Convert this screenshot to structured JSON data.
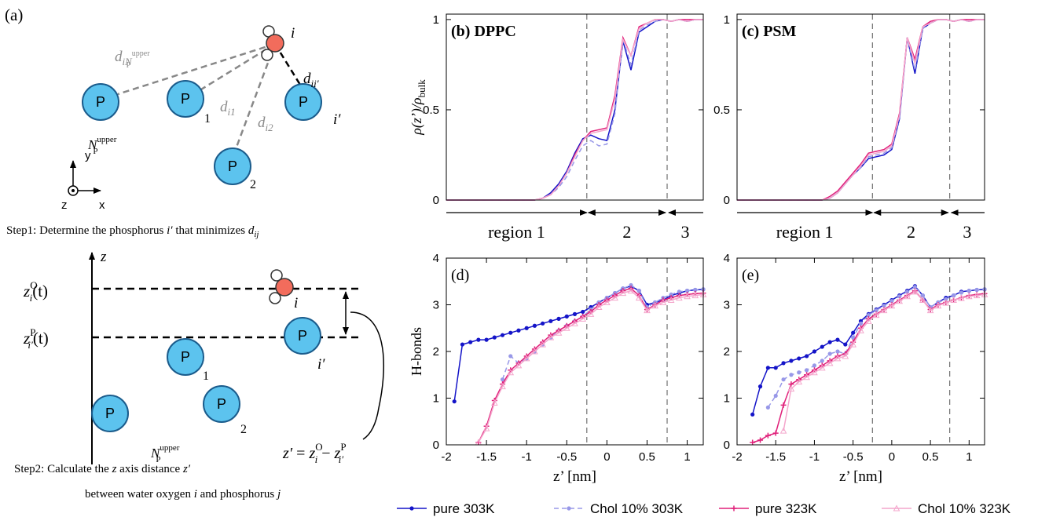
{
  "diagram": {
    "label": "(a)",
    "step1": {
      "nodes": [
        "P",
        "P",
        "P",
        "P"
      ],
      "node_subs": [
        "1",
        "2"
      ],
      "n_upper": [
        "N",
        "upper",
        "P"
      ],
      "water": "i",
      "partner": "i′",
      "d_far": [
        "d",
        "iN",
        "upper",
        "P"
      ],
      "d_1": [
        "d",
        "i1"
      ],
      "d_2": [
        "d",
        "i2"
      ],
      "d_near": [
        "d",
        "ii′"
      ],
      "axes": [
        "y",
        "z",
        "x"
      ],
      "caption": [
        "Step1: Determine the phosphorus ",
        "i′",
        " that minimizes ",
        "d",
        "ij"
      ]
    },
    "step2": {
      "axis": "z",
      "zo": [
        "z",
        "O",
        "i",
        "(t)"
      ],
      "zp": [
        "z",
        "P",
        "i′",
        "(t)"
      ],
      "nodes": [
        "P",
        "P",
        "P",
        "P"
      ],
      "node_subs": [
        "1",
        "2"
      ],
      "partner": "i′",
      "n_upper": [
        "N",
        "upper",
        "P"
      ],
      "water": "i",
      "equation": [
        "z′",
        " = ",
        "z",
        "O",
        "i",
        " − ",
        "z",
        "P",
        "i′"
      ],
      "caption": [
        "Step2: Calculate the ",
        "z",
        " axis distance ",
        "z′"
      ],
      "caption2": [
        "between water oxygen ",
        "i",
        " and phosphorus ",
        "j"
      ]
    }
  },
  "legend": [
    {
      "name": "pure 303K",
      "color": "#1414c8",
      "dash": false,
      "marker": "circle"
    },
    {
      "name": "Chol 10% 303K",
      "color": "#9898e8",
      "dash": true,
      "marker": "circle"
    },
    {
      "name": "pure 323K",
      "color": "#e0207a",
      "dash": false,
      "marker": "plus"
    },
    {
      "name": "Chol 10% 323K",
      "color": "#f4a6cc",
      "dash": false,
      "marker": "triangle"
    }
  ],
  "chart_data": [
    {
      "type": "line",
      "title": "(b) DPPC",
      "ylabel": "ρ(z’)/ρ",
      "ylabel_sub": "bulk",
      "x": [
        -2,
        -1.9,
        -1.8,
        -1.7,
        -1.6,
        -1.5,
        -1.4,
        -1.3,
        -1.2,
        -1.1,
        -1,
        -0.9,
        -0.8,
        -0.7,
        -0.6,
        -0.5,
        -0.4,
        -0.3,
        -0.2,
        -0.1,
        0,
        0.1,
        0.2,
        0.3,
        0.4,
        0.5,
        0.6,
        0.7,
        0.8,
        0.9,
        1,
        1.1,
        1.2
      ],
      "series": [
        {
          "values": [
            0,
            0,
            0,
            0,
            0,
            0,
            0,
            0,
            0,
            0,
            0,
            0,
            0.01,
            0.04,
            0.09,
            0.16,
            0.26,
            0.34,
            0.36,
            0.34,
            0.33,
            0.5,
            0.88,
            0.72,
            0.93,
            0.96,
            0.99,
            1.0,
            0.99,
            1.0,
            0.99,
            1.0,
            1.0
          ]
        },
        {
          "values": [
            0,
            0,
            0,
            0,
            0,
            0,
            0,
            0,
            0,
            0,
            0,
            0,
            0.01,
            0.03,
            0.07,
            0.13,
            0.22,
            0.3,
            0.33,
            0.3,
            0.31,
            0.48,
            0.89,
            0.75,
            0.94,
            0.97,
            0.99,
            1.0,
            0.99,
            1.0,
            0.99,
            1.0,
            1.0
          ]
        },
        {
          "values": [
            0,
            0,
            0,
            0,
            0,
            0,
            0,
            0,
            0,
            0,
            0,
            0,
            0.01,
            0.03,
            0.08,
            0.15,
            0.25,
            0.33,
            0.38,
            0.39,
            0.4,
            0.58,
            0.9,
            0.8,
            0.96,
            0.98,
            1.0,
            1.0,
            0.99,
            1.0,
            1.0,
            1.0,
            1.0
          ]
        },
        {
          "values": [
            0,
            0,
            0,
            0,
            0,
            0,
            0,
            0,
            0,
            0,
            0,
            0,
            0.01,
            0.03,
            0.08,
            0.15,
            0.24,
            0.33,
            0.37,
            0.38,
            0.39,
            0.56,
            0.89,
            0.8,
            0.95,
            0.98,
            1.0,
            1.0,
            0.99,
            1.0,
            0.99,
            1.0,
            1.0
          ]
        }
      ],
      "xlim": [
        -2,
        1.2
      ],
      "ylim": [
        0,
        1.03
      ],
      "yticks": [
        0,
        0.5,
        1
      ],
      "vlines": [
        -0.25,
        0.75
      ],
      "regions": [
        "region 1",
        "2",
        "3"
      ],
      "markers": false
    },
    {
      "type": "line",
      "title": "(c) PSM",
      "x": [
        -2,
        -1.9,
        -1.8,
        -1.7,
        -1.6,
        -1.5,
        -1.4,
        -1.3,
        -1.2,
        -1.1,
        -1,
        -0.9,
        -0.8,
        -0.7,
        -0.6,
        -0.5,
        -0.4,
        -0.3,
        -0.2,
        -0.1,
        0,
        0.1,
        0.2,
        0.3,
        0.4,
        0.5,
        0.6,
        0.7,
        0.8,
        0.9,
        1,
        1.1,
        1.2
      ],
      "series": [
        {
          "values": [
            0,
            0,
            0,
            0,
            0,
            0,
            0,
            0,
            0,
            0,
            0,
            0,
            0.01,
            0.04,
            0.09,
            0.14,
            0.18,
            0.23,
            0.24,
            0.25,
            0.28,
            0.45,
            0.9,
            0.7,
            0.95,
            0.98,
            1.0,
            1.0,
            0.99,
            1.0,
            0.99,
            1.0,
            1.0
          ]
        },
        {
          "values": [
            0,
            0,
            0,
            0,
            0,
            0,
            0,
            0,
            0,
            0,
            0,
            0,
            0.01,
            0.04,
            0.09,
            0.14,
            0.18,
            0.24,
            0.25,
            0.26,
            0.29,
            0.46,
            0.9,
            0.72,
            0.95,
            0.98,
            1.0,
            1.0,
            0.99,
            1.0,
            0.99,
            1.0,
            1.0
          ]
        },
        {
          "values": [
            0,
            0,
            0,
            0,
            0,
            0,
            0,
            0,
            0,
            0,
            0,
            0,
            0.02,
            0.05,
            0.1,
            0.15,
            0.2,
            0.26,
            0.27,
            0.28,
            0.31,
            0.48,
            0.9,
            0.78,
            0.96,
            0.99,
            1.0,
            1.0,
            0.99,
            1.0,
            1.0,
            1.0,
            1.0
          ]
        },
        {
          "values": [
            0,
            0,
            0,
            0,
            0,
            0,
            0,
            0,
            0,
            0,
            0,
            0,
            0.01,
            0.04,
            0.09,
            0.14,
            0.19,
            0.25,
            0.26,
            0.27,
            0.3,
            0.47,
            0.9,
            0.76,
            0.96,
            0.98,
            1.0,
            1.0,
            0.99,
            1.0,
            0.99,
            1.0,
            1.0
          ]
        }
      ],
      "xlim": [
        -2,
        1.2
      ],
      "ylim": [
        0,
        1.03
      ],
      "yticks": [
        0,
        0.5,
        1
      ],
      "vlines": [
        -0.25,
        0.75
      ],
      "regions": [
        "region 1",
        "2",
        "3"
      ],
      "markers": false
    },
    {
      "type": "line",
      "title": "(d)",
      "ylabel": "H-bonds",
      "xlabel": "z’ [nm]",
      "x": [
        -2,
        -1.9,
        -1.8,
        -1.7,
        -1.6,
        -1.5,
        -1.4,
        -1.3,
        -1.2,
        -1.1,
        -1,
        -0.9,
        -0.8,
        -0.7,
        -0.6,
        -0.5,
        -0.4,
        -0.3,
        -0.2,
        -0.1,
        0,
        0.1,
        0.2,
        0.3,
        0.4,
        0.5,
        0.6,
        0.7,
        0.8,
        0.9,
        1,
        1.1,
        1.2
      ],
      "series": [
        {
          "values": [
            null,
            0.93,
            2.15,
            2.2,
            2.25,
            2.25,
            2.3,
            2.35,
            2.4,
            2.45,
            2.5,
            2.55,
            2.6,
            2.65,
            2.7,
            2.75,
            2.8,
            2.85,
            2.95,
            3.05,
            3.15,
            3.25,
            3.35,
            3.4,
            3.3,
            3.0,
            3.05,
            3.1,
            3.2,
            3.25,
            3.3,
            3.32,
            3.33
          ]
        },
        {
          "values": [
            null,
            null,
            null,
            null,
            null,
            null,
            null,
            1.4,
            1.9,
            1.75,
            1.85,
            2.0,
            2.15,
            2.3,
            2.45,
            2.55,
            2.65,
            2.75,
            2.9,
            3.05,
            3.15,
            3.25,
            3.35,
            3.42,
            3.3,
            2.95,
            3.05,
            3.15,
            3.22,
            3.28,
            3.3,
            3.32,
            3.33
          ]
        },
        {
          "values": [
            null,
            null,
            null,
            null,
            0.05,
            0.4,
            0.95,
            1.3,
            1.6,
            1.75,
            1.9,
            2.05,
            2.2,
            2.35,
            2.45,
            2.55,
            2.65,
            2.75,
            2.85,
            3.0,
            3.1,
            3.2,
            3.3,
            3.35,
            3.2,
            2.9,
            3.0,
            3.1,
            3.15,
            3.2,
            3.22,
            3.24,
            3.25
          ]
        },
        {
          "values": [
            null,
            null,
            null,
            null,
            0.05,
            0.35,
            0.9,
            1.25,
            1.55,
            1.7,
            1.85,
            2.0,
            2.15,
            2.3,
            2.4,
            2.5,
            2.6,
            2.7,
            2.8,
            2.95,
            3.05,
            3.15,
            3.25,
            3.3,
            3.15,
            2.88,
            2.98,
            3.05,
            3.1,
            3.15,
            3.18,
            3.2,
            3.22
          ]
        }
      ],
      "xlim": [
        -2,
        1.2
      ],
      "ylim": [
        0,
        4
      ],
      "yticks": [
        0,
        1,
        2,
        3,
        4
      ],
      "xticks": [
        -2,
        -1.5,
        -1,
        -0.5,
        0,
        0.5,
        1
      ],
      "vlines": [
        -0.25,
        0.75
      ],
      "markers": true
    },
    {
      "type": "line",
      "title": "(e)",
      "xlabel": "z’ [nm]",
      "x": [
        -2,
        -1.9,
        -1.8,
        -1.7,
        -1.6,
        -1.5,
        -1.4,
        -1.3,
        -1.2,
        -1.1,
        -1,
        -0.9,
        -0.8,
        -0.7,
        -0.6,
        -0.5,
        -0.4,
        -0.3,
        -0.2,
        -0.1,
        0,
        0.1,
        0.2,
        0.3,
        0.4,
        0.5,
        0.6,
        0.7,
        0.8,
        0.9,
        1,
        1.1,
        1.2
      ],
      "series": [
        {
          "values": [
            null,
            null,
            0.65,
            1.25,
            1.65,
            1.65,
            1.75,
            1.8,
            1.85,
            1.9,
            2.0,
            2.1,
            2.2,
            2.25,
            2.15,
            2.4,
            2.65,
            2.8,
            2.9,
            3.0,
            3.1,
            3.2,
            3.3,
            3.4,
            3.2,
            2.95,
            3.05,
            3.15,
            3.2,
            3.28,
            3.3,
            3.32,
            3.33
          ]
        },
        {
          "values": [
            null,
            null,
            null,
            null,
            0.8,
            1.05,
            1.4,
            1.5,
            1.55,
            1.6,
            1.7,
            1.8,
            1.95,
            2.0,
            1.95,
            2.3,
            2.6,
            2.78,
            2.88,
            2.98,
            3.08,
            3.18,
            3.28,
            3.38,
            3.2,
            2.95,
            3.05,
            3.12,
            3.2,
            3.26,
            3.3,
            3.32,
            3.33
          ]
        },
        {
          "values": [
            null,
            null,
            0.05,
            0.1,
            0.2,
            0.25,
            0.85,
            1.3,
            1.4,
            1.5,
            1.6,
            1.7,
            1.8,
            1.9,
            1.95,
            2.2,
            2.5,
            2.7,
            2.8,
            2.9,
            3.0,
            3.1,
            3.2,
            3.3,
            3.1,
            2.9,
            3.0,
            3.05,
            3.1,
            3.15,
            3.2,
            3.22,
            3.24
          ]
        },
        {
          "values": [
            null,
            null,
            null,
            null,
            null,
            null,
            0.3,
            1.2,
            1.35,
            1.45,
            1.55,
            1.65,
            1.75,
            1.85,
            1.9,
            2.15,
            2.45,
            2.65,
            2.78,
            2.88,
            2.98,
            3.08,
            3.18,
            3.28,
            3.1,
            2.88,
            2.98,
            3.04,
            3.1,
            3.14,
            3.18,
            3.2,
            3.22
          ]
        }
      ],
      "xlim": [
        -2,
        1.2
      ],
      "ylim": [
        0,
        4
      ],
      "yticks": [
        0,
        1,
        2,
        3,
        4
      ],
      "xticks": [
        -2,
        -1.5,
        -1,
        -0.5,
        0,
        0.5,
        1
      ],
      "vlines": [
        -0.25,
        0.75
      ],
      "markers": true
    }
  ]
}
